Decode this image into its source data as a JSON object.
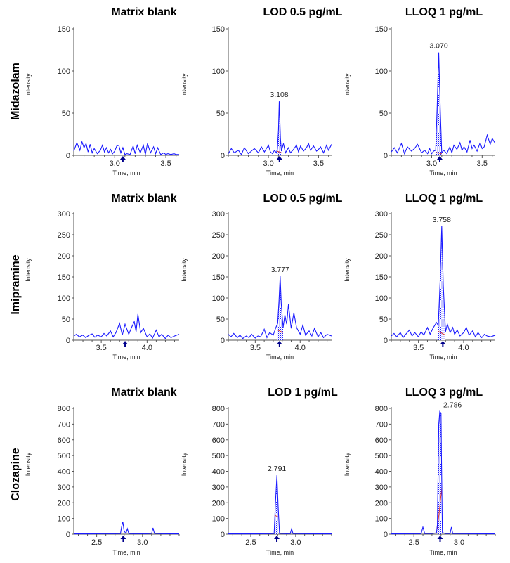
{
  "figure": {
    "rows": [
      "Midazolam",
      "Imipramine",
      "Clozapine"
    ],
    "columns": [
      "Matrix blank",
      "LOD",
      "LLOQ"
    ]
  },
  "chart_data": [
    {
      "type": "line",
      "row": "Midazolam",
      "title": "Matrix blank",
      "xlabel": "Time, min",
      "ylabel": "Intensity",
      "xlim": [
        2.6,
        3.63
      ],
      "ylim": [
        0,
        150
      ],
      "xticks": [
        "3.0",
        "3.5"
      ],
      "yticks": [
        "0",
        "50",
        "100",
        "150"
      ],
      "marker_x": 3.08,
      "integration": null,
      "x": [
        2.6,
        2.63,
        2.66,
        2.68,
        2.7,
        2.72,
        2.74,
        2.76,
        2.78,
        2.8,
        2.83,
        2.86,
        2.88,
        2.9,
        2.92,
        2.94,
        2.96,
        2.98,
        3.0,
        3.02,
        3.04,
        3.06,
        3.08,
        3.1,
        3.12,
        3.15,
        3.18,
        3.2,
        3.22,
        3.25,
        3.28,
        3.3,
        3.32,
        3.35,
        3.38,
        3.4,
        3.42,
        3.45,
        3.48,
        3.5,
        3.52,
        3.55,
        3.58,
        3.6,
        3.63
      ],
      "y": [
        5,
        15,
        6,
        16,
        9,
        14,
        4,
        13,
        3,
        8,
        2,
        6,
        12,
        4,
        9,
        3,
        7,
        2,
        5,
        11,
        12,
        3,
        9,
        1,
        2,
        1,
        11,
        2,
        12,
        3,
        12,
        1,
        14,
        3,
        10,
        2,
        9,
        1,
        3,
        1,
        2,
        1,
        2,
        1,
        1
      ]
    },
    {
      "type": "line",
      "row": "Midazolam",
      "title": "LOD 0.5 pg/mL",
      "xlabel": "Time, min",
      "ylabel": "Intensity",
      "xlim": [
        2.6,
        3.63
      ],
      "ylim": [
        0,
        150
      ],
      "xticks": [
        "3.0",
        "3.5"
      ],
      "yticks": [
        "0",
        "50",
        "100",
        "150"
      ],
      "marker_x": 3.11,
      "peak_label": "3.108",
      "peak_x": 3.108,
      "peak_y": 64,
      "integration": [
        3.09,
        3.13
      ],
      "x": [
        2.6,
        2.63,
        2.66,
        2.7,
        2.73,
        2.76,
        2.8,
        2.83,
        2.86,
        2.9,
        2.93,
        2.96,
        2.98,
        3.0,
        3.02,
        3.04,
        3.06,
        3.08,
        3.09,
        3.1,
        3.108,
        3.12,
        3.13,
        3.15,
        3.17,
        3.2,
        3.22,
        3.25,
        3.28,
        3.3,
        3.32,
        3.35,
        3.38,
        3.4,
        3.42,
        3.45,
        3.48,
        3.5,
        3.52,
        3.55,
        3.58,
        3.6,
        3.63
      ],
      "y": [
        2,
        8,
        3,
        6,
        1,
        9,
        2,
        5,
        8,
        3,
        10,
        4,
        8,
        12,
        4,
        2,
        6,
        3,
        8,
        30,
        64,
        20,
        5,
        14,
        3,
        9,
        3,
        7,
        12,
        4,
        11,
        5,
        9,
        14,
        6,
        11,
        5,
        7,
        10,
        3,
        12,
        6,
        13
      ]
    },
    {
      "type": "line",
      "row": "Midazolam",
      "title": "LLOQ 1 pg/mL",
      "xlabel": "Time, min",
      "ylabel": "Intensity",
      "xlim": [
        2.6,
        3.63
      ],
      "ylim": [
        0,
        150
      ],
      "xticks": [
        "3.0",
        "3.5"
      ],
      "yticks": [
        "0",
        "50",
        "100",
        "150"
      ],
      "marker_x": 3.08,
      "peak_label": "3.070",
      "peak_x": 3.07,
      "peak_y": 122,
      "integration": [
        3.04,
        3.1
      ],
      "x": [
        2.6,
        2.63,
        2.66,
        2.7,
        2.73,
        2.76,
        2.8,
        2.83,
        2.86,
        2.9,
        2.93,
        2.96,
        2.98,
        3.0,
        3.02,
        3.04,
        3.055,
        3.07,
        3.085,
        3.1,
        3.12,
        3.15,
        3.18,
        3.2,
        3.22,
        3.25,
        3.28,
        3.3,
        3.32,
        3.35,
        3.38,
        3.4,
        3.42,
        3.45,
        3.48,
        3.5,
        3.52,
        3.55,
        3.58,
        3.6,
        3.63
      ],
      "y": [
        4,
        9,
        3,
        14,
        2,
        10,
        5,
        8,
        13,
        3,
        6,
        2,
        8,
        2,
        5,
        6,
        60,
        122,
        55,
        3,
        6,
        2,
        10,
        3,
        12,
        7,
        15,
        6,
        10,
        4,
        18,
        8,
        12,
        5,
        15,
        8,
        10,
        24,
        13,
        20,
        14
      ]
    },
    {
      "type": "line",
      "row": "Imipramine",
      "title": "Matrix blank",
      "xlabel": "Time, min",
      "ylabel": "Intensity",
      "xlim": [
        3.2,
        4.35
      ],
      "ylim": [
        0,
        300
      ],
      "xticks": [
        "3.5",
        "4.0"
      ],
      "yticks": [
        "0",
        "50",
        "100",
        "150",
        "200",
        "250",
        "300"
      ],
      "marker_x": 3.76,
      "integration": null,
      "x": [
        3.2,
        3.23,
        3.26,
        3.3,
        3.33,
        3.36,
        3.4,
        3.43,
        3.46,
        3.5,
        3.53,
        3.56,
        3.6,
        3.63,
        3.66,
        3.7,
        3.73,
        3.76,
        3.8,
        3.83,
        3.86,
        3.88,
        3.9,
        3.93,
        3.96,
        4.0,
        4.03,
        4.06,
        4.1,
        4.13,
        4.16,
        4.2,
        4.23,
        4.26,
        4.3,
        4.35
      ],
      "y": [
        10,
        14,
        8,
        12,
        6,
        11,
        15,
        7,
        12,
        8,
        16,
        10,
        22,
        8,
        18,
        40,
        12,
        38,
        14,
        30,
        44,
        20,
        62,
        18,
        28,
        8,
        15,
        5,
        24,
        8,
        14,
        4,
        12,
        6,
        10,
        14
      ]
    },
    {
      "type": "line",
      "row": "Imipramine",
      "title": "LOD 0.5 pg/mL",
      "xlabel": "Time, min",
      "ylabel": "Intensity",
      "xlim": [
        3.2,
        4.35
      ],
      "ylim": [
        0,
        300
      ],
      "xticks": [
        "3.5",
        "4.0"
      ],
      "yticks": [
        "0",
        "50",
        "100",
        "150",
        "200",
        "250",
        "300"
      ],
      "marker_x": 3.77,
      "peak_label": "3.777",
      "peak_x": 3.777,
      "peak_y": 152,
      "integration": [
        3.75,
        3.81
      ],
      "x": [
        3.2,
        3.23,
        3.26,
        3.3,
        3.33,
        3.36,
        3.4,
        3.43,
        3.46,
        3.5,
        3.53,
        3.56,
        3.6,
        3.63,
        3.66,
        3.7,
        3.73,
        3.75,
        3.765,
        3.777,
        3.79,
        3.81,
        3.83,
        3.85,
        3.87,
        3.9,
        3.93,
        3.96,
        4.0,
        4.03,
        4.06,
        4.1,
        4.13,
        4.16,
        4.2,
        4.23,
        4.26,
        4.3,
        4.35
      ],
      "y": [
        14,
        8,
        16,
        6,
        12,
        4,
        10,
        6,
        14,
        5,
        10,
        8,
        26,
        6,
        18,
        12,
        30,
        40,
        95,
        152,
        85,
        30,
        60,
        38,
        85,
        28,
        65,
        30,
        14,
        36,
        12,
        22,
        10,
        28,
        8,
        18,
        6,
        14,
        10
      ]
    },
    {
      "type": "line",
      "row": "Imipramine",
      "title": "LLOQ 1 pg/mL",
      "xlabel": "Time, min",
      "ylabel": "Intensity",
      "xlim": [
        3.2,
        4.35
      ],
      "ylim": [
        0,
        300
      ],
      "xticks": [
        "3.5",
        "4.0"
      ],
      "yticks": [
        "0",
        "50",
        "100",
        "150",
        "200",
        "250",
        "300"
      ],
      "marker_x": 3.77,
      "peak_label": "3.758",
      "peak_x": 3.758,
      "peak_y": 270,
      "integration": [
        3.72,
        3.8
      ],
      "x": [
        3.2,
        3.23,
        3.26,
        3.3,
        3.33,
        3.36,
        3.4,
        3.43,
        3.46,
        3.5,
        3.53,
        3.56,
        3.6,
        3.63,
        3.66,
        3.7,
        3.72,
        3.74,
        3.758,
        3.775,
        3.8,
        3.82,
        3.85,
        3.88,
        3.9,
        3.93,
        3.96,
        4.0,
        4.03,
        4.06,
        4.1,
        4.13,
        4.16,
        4.2,
        4.23,
        4.26,
        4.3,
        4.35
      ],
      "y": [
        10,
        16,
        8,
        18,
        6,
        14,
        24,
        10,
        18,
        8,
        20,
        12,
        30,
        14,
        28,
        42,
        35,
        140,
        270,
        130,
        20,
        38,
        18,
        30,
        14,
        24,
        10,
        18,
        30,
        12,
        22,
        8,
        18,
        6,
        14,
        10,
        8,
        12
      ]
    },
    {
      "type": "line",
      "row": "Clozapine",
      "title": "Matrix blank",
      "xlabel": "Time, min",
      "ylabel": "Intensity",
      "xlim": [
        2.25,
        3.4
      ],
      "ylim": [
        0,
        800
      ],
      "xticks": [
        "2.5",
        "3.0"
      ],
      "yticks": [
        "0",
        "100",
        "200",
        "300",
        "400",
        "500",
        "600",
        "700",
        "800"
      ],
      "marker_x": 2.79,
      "integration": null,
      "x": [
        2.25,
        2.4,
        2.55,
        2.7,
        2.76,
        2.77,
        2.785,
        2.8,
        2.82,
        2.835,
        2.85,
        2.9,
        3.05,
        3.1,
        3.115,
        3.13,
        3.2,
        3.4
      ],
      "y": [
        2,
        2,
        3,
        3,
        4,
        40,
        80,
        20,
        5,
        35,
        4,
        3,
        3,
        5,
        40,
        5,
        3,
        2
      ]
    },
    {
      "type": "line",
      "row": "Clozapine",
      "title": "LOD 1 pg/mL",
      "xlabel": "Time, min",
      "ylabel": "Intensity",
      "xlim": [
        2.25,
        3.4
      ],
      "ylim": [
        0,
        800
      ],
      "xticks": [
        "2.5",
        "3.0"
      ],
      "yticks": [
        "0",
        "100",
        "200",
        "300",
        "400",
        "500",
        "600",
        "700",
        "800"
      ],
      "marker_x": 2.79,
      "peak_label": "2.791",
      "peak_x": 2.791,
      "peak_y": 375,
      "integration": [
        2.77,
        2.81
      ],
      "x": [
        2.25,
        2.5,
        2.7,
        2.76,
        2.775,
        2.791,
        2.805,
        2.82,
        2.9,
        2.94,
        2.955,
        2.97,
        3.1,
        3.4
      ],
      "y": [
        2,
        2,
        3,
        4,
        200,
        375,
        180,
        5,
        3,
        4,
        35,
        4,
        3,
        2
      ]
    },
    {
      "type": "line",
      "row": "Clozapine",
      "title": "LLOQ 3 pg/mL",
      "xlabel": "Time, min",
      "ylabel": "Intensity",
      "xlim": [
        2.25,
        3.4
      ],
      "ylim": [
        0,
        800
      ],
      "xticks": [
        "2.5",
        "3.0"
      ],
      "yticks": [
        "0",
        "100",
        "200",
        "300",
        "400",
        "500",
        "600",
        "700",
        "800"
      ],
      "marker_x": 2.79,
      "peak_label": "2.786",
      "peak_x": 2.786,
      "peak_y": 780,
      "integration": [
        2.76,
        2.81
      ],
      "x": [
        2.25,
        2.5,
        2.58,
        2.6,
        2.62,
        2.7,
        2.75,
        2.76,
        2.775,
        2.786,
        2.8,
        2.805,
        2.815,
        2.85,
        2.9,
        2.915,
        2.93,
        3.1,
        3.4
      ],
      "y": [
        2,
        3,
        3,
        45,
        4,
        4,
        8,
        60,
        700,
        780,
        770,
        500,
        10,
        4,
        4,
        45,
        4,
        3,
        2
      ]
    }
  ]
}
